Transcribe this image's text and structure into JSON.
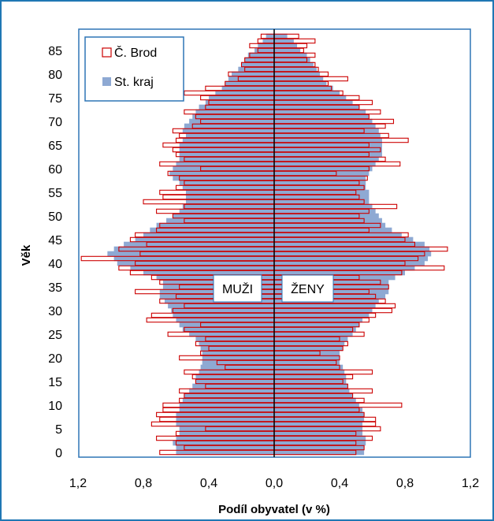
{
  "colors": {
    "frame": "#1F77B4",
    "plot_border": "#2E75B6",
    "kraj_fill": "#8EA9D3",
    "brod_stroke": "#CC0000",
    "brod_fill": "#FFFFFF",
    "axis": "#000000",
    "background": "#FFFFFF"
  },
  "chart_data": {
    "type": "bar",
    "orientation": "horizontal",
    "title": "",
    "xlabel": "Podíl obyvatel (v %)",
    "ylabel": "Věk",
    "xlim": [
      -1.2,
      1.2
    ],
    "ylim": [
      0,
      89
    ],
    "x_ticks": [
      -1.2,
      -0.8,
      -0.4,
      0.0,
      0.4,
      0.8,
      1.2
    ],
    "x_tick_labels": [
      "1,2",
      "0,8",
      "0,4",
      "0,0",
      "0,4",
      "0,8",
      "1,2"
    ],
    "y_ticks": [
      0,
      5,
      10,
      15,
      20,
      25,
      30,
      35,
      40,
      45,
      50,
      55,
      60,
      65,
      70,
      75,
      80,
      85
    ],
    "y_tick_labels": [
      "0",
      "5",
      "10",
      "15",
      "20",
      "25",
      "30",
      "35",
      "40",
      "45",
      "50",
      "55",
      "60",
      "65",
      "70",
      "75",
      "80",
      "85"
    ],
    "legend_position": "top-left",
    "grid": false,
    "annotations": {
      "left": "MUŽI",
      "right": "ŽENY"
    },
    "series": [
      {
        "name": "Č. Brod",
        "style": "outline",
        "males": [
          0.7,
          0.55,
          0.6,
          0.72,
          0.6,
          0.42,
          0.75,
          0.7,
          0.72,
          0.68,
          0.68,
          0.58,
          0.55,
          0.58,
          0.42,
          0.48,
          0.5,
          0.55,
          0.3,
          0.35,
          0.58,
          0.45,
          0.4,
          0.48,
          0.42,
          0.65,
          0.55,
          0.45,
          0.78,
          0.75,
          0.62,
          0.55,
          0.7,
          0.6,
          0.85,
          0.58,
          0.7,
          0.75,
          0.88,
          0.95,
          0.85,
          1.18,
          0.82,
          0.95,
          0.78,
          0.88,
          0.85,
          0.72,
          0.7,
          0.55,
          0.62,
          0.72,
          0.55,
          0.8,
          0.68,
          0.7,
          0.6,
          0.55,
          0.58,
          0.65,
          0.45,
          0.7,
          0.55,
          0.6,
          0.62,
          0.68,
          0.6,
          0.58,
          0.62,
          0.5,
          0.45,
          0.48,
          0.55,
          0.42,
          0.4,
          0.45,
          0.55,
          0.42,
          0.3,
          0.22,
          0.28,
          0.18,
          0.2,
          0.18,
          0.15,
          0.1,
          0.15,
          0.1,
          0.08
        ],
        "females": [
          0.5,
          0.55,
          0.5,
          0.6,
          0.5,
          0.65,
          0.62,
          0.62,
          0.55,
          0.52,
          0.78,
          0.55,
          0.48,
          0.6,
          0.45,
          0.42,
          0.48,
          0.6,
          0.4,
          0.38,
          0.4,
          0.28,
          0.42,
          0.45,
          0.4,
          0.55,
          0.48,
          0.52,
          0.58,
          0.62,
          0.72,
          0.74,
          0.68,
          0.62,
          0.58,
          0.7,
          0.65,
          0.52,
          0.78,
          1.04,
          0.8,
          0.88,
          0.92,
          1.06,
          0.86,
          0.8,
          0.82,
          0.58,
          0.65,
          0.55,
          0.52,
          0.58,
          0.75,
          0.55,
          0.52,
          0.5,
          0.55,
          0.52,
          0.57,
          0.38,
          0.58,
          0.77,
          0.68,
          0.58,
          0.65,
          0.58,
          0.82,
          0.7,
          0.55,
          0.68,
          0.73,
          0.58,
          0.65,
          0.52,
          0.6,
          0.52,
          0.42,
          0.35,
          0.33,
          0.45,
          0.33,
          0.27,
          0.25,
          0.2,
          0.25,
          0.18,
          0.2,
          0.25,
          0.15
        ]
      },
      {
        "name": "St. kraj",
        "style": "filled",
        "males": [
          0.6,
          0.6,
          0.62,
          0.6,
          0.58,
          0.58,
          0.6,
          0.6,
          0.6,
          0.58,
          0.58,
          0.56,
          0.55,
          0.52,
          0.5,
          0.48,
          0.48,
          0.46,
          0.45,
          0.44,
          0.44,
          0.44,
          0.45,
          0.46,
          0.48,
          0.52,
          0.56,
          0.58,
          0.6,
          0.62,
          0.63,
          0.65,
          0.67,
          0.7,
          0.7,
          0.68,
          0.68,
          0.72,
          0.8,
          0.88,
          0.96,
          0.98,
          1.02,
          0.98,
          0.92,
          0.85,
          0.8,
          0.76,
          0.72,
          0.66,
          0.62,
          0.58,
          0.56,
          0.54,
          0.54,
          0.54,
          0.56,
          0.58,
          0.62,
          0.64,
          0.62,
          0.6,
          0.58,
          0.58,
          0.58,
          0.58,
          0.56,
          0.54,
          0.56,
          0.55,
          0.52,
          0.5,
          0.48,
          0.46,
          0.42,
          0.4,
          0.36,
          0.32,
          0.3,
          0.28,
          0.26,
          0.22,
          0.2,
          0.18,
          0.16,
          0.12,
          0.1,
          0.07,
          0.05
        ],
        "females": [
          0.55,
          0.55,
          0.56,
          0.56,
          0.54,
          0.54,
          0.54,
          0.55,
          0.55,
          0.54,
          0.52,
          0.5,
          0.48,
          0.46,
          0.45,
          0.44,
          0.44,
          0.43,
          0.42,
          0.4,
          0.4,
          0.4,
          0.42,
          0.43,
          0.45,
          0.48,
          0.5,
          0.52,
          0.54,
          0.58,
          0.6,
          0.62,
          0.64,
          0.68,
          0.7,
          0.7,
          0.7,
          0.74,
          0.8,
          0.86,
          0.92,
          0.94,
          0.96,
          0.95,
          0.92,
          0.85,
          0.78,
          0.72,
          0.68,
          0.66,
          0.64,
          0.62,
          0.6,
          0.58,
          0.58,
          0.58,
          0.56,
          0.56,
          0.56,
          0.58,
          0.6,
          0.62,
          0.64,
          0.66,
          0.66,
          0.66,
          0.66,
          0.65,
          0.64,
          0.62,
          0.6,
          0.58,
          0.56,
          0.52,
          0.48,
          0.44,
          0.4,
          0.36,
          0.32,
          0.3,
          0.28,
          0.26,
          0.24,
          0.22,
          0.2,
          0.16,
          0.14,
          0.12,
          0.08
        ]
      }
    ]
  }
}
